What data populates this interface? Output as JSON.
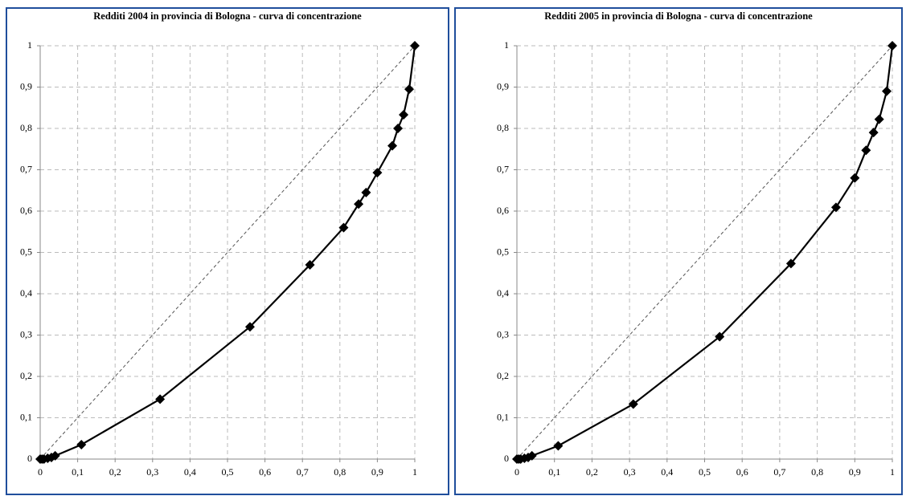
{
  "chart_data": [
    {
      "type": "line",
      "title": "Redditi 2004 in provincia di Bologna - curva di concentrazione",
      "xlim": [
        0,
        1
      ],
      "ylim": [
        0,
        1
      ],
      "xticks": [
        0,
        {
          "value": 0.1,
          "label": "0,1"
        },
        {
          "value": 0.2,
          "label": "0,2"
        },
        {
          "value": 0.3,
          "label": "0,3"
        },
        {
          "value": 0.4,
          "label": "0,4"
        },
        {
          "value": 0.5,
          "label": "0,5"
        },
        {
          "value": 0.6,
          "label": "0,6"
        },
        {
          "value": 0.7,
          "label": "0,7"
        },
        {
          "value": 0.8,
          "label": "0,8"
        },
        {
          "value": 0.9,
          "label": "0,9"
        },
        1
      ],
      "yticks": [
        0,
        {
          "value": 0.1,
          "label": "0,1"
        },
        {
          "value": 0.2,
          "label": "0,2"
        },
        {
          "value": 0.3,
          "label": "0,3"
        },
        {
          "value": 0.4,
          "label": "0,4"
        },
        {
          "value": 0.5,
          "label": "0,5"
        },
        {
          "value": 0.6,
          "label": "0,6"
        },
        {
          "value": 0.7,
          "label": "0,7"
        },
        {
          "value": 0.8,
          "label": "0,8"
        },
        {
          "value": 0.9,
          "label": "0,9"
        },
        1
      ],
      "grid": true,
      "series": [
        {
          "color": "#555555",
          "dashed": true,
          "x": [
            0,
            1
          ],
          "values": [
            0,
            1
          ]
        },
        {
          "color": "#000000",
          "marker": "diamond",
          "x": [
            0,
            0.005,
            0.01,
            0.02,
            0.03,
            0.04,
            0.11,
            0.32,
            0.56,
            0.72,
            0.81,
            0.85,
            0.87,
            0.9,
            0.94,
            0.955,
            0.97,
            0.985,
            1
          ],
          "values": [
            0,
            0,
            0,
            0.002,
            0.004,
            0.008,
            0.035,
            0.145,
            0.32,
            0.47,
            0.56,
            0.617,
            0.645,
            0.693,
            0.758,
            0.8,
            0.833,
            0.895,
            1
          ]
        }
      ]
    },
    {
      "type": "line",
      "title": "Redditi 2005 in provincia di Bologna - curva di concentrazione",
      "xlim": [
        0,
        1
      ],
      "ylim": [
        0,
        1
      ],
      "xticks": [
        0,
        {
          "value": 0.1,
          "label": "0,1"
        },
        {
          "value": 0.2,
          "label": "0,2"
        },
        {
          "value": 0.3,
          "label": "0,3"
        },
        {
          "value": 0.4,
          "label": "0,4"
        },
        {
          "value": 0.5,
          "label": "0,5"
        },
        {
          "value": 0.6,
          "label": "0,6"
        },
        {
          "value": 0.7,
          "label": "0,7"
        },
        {
          "value": 0.8,
          "label": "0,8"
        },
        {
          "value": 0.9,
          "label": "0,9"
        },
        1
      ],
      "yticks": [
        0,
        {
          "value": 0.1,
          "label": "0,1"
        },
        {
          "value": 0.2,
          "label": "0,2"
        },
        {
          "value": 0.3,
          "label": "0,3"
        },
        {
          "value": 0.4,
          "label": "0,4"
        },
        {
          "value": 0.5,
          "label": "0,5"
        },
        {
          "value": 0.6,
          "label": "0,6"
        },
        {
          "value": 0.7,
          "label": "0,7"
        },
        {
          "value": 0.8,
          "label": "0,8"
        },
        {
          "value": 0.9,
          "label": "0,9"
        },
        1
      ],
      "grid": true,
      "series": [
        {
          "color": "#555555",
          "dashed": true,
          "x": [
            0,
            1
          ],
          "values": [
            0,
            1
          ]
        },
        {
          "color": "#000000",
          "marker": "diamond",
          "x": [
            0,
            0.005,
            0.01,
            0.02,
            0.03,
            0.04,
            0.11,
            0.31,
            0.54,
            0.73,
            0.85,
            0.9,
            0.93,
            0.95,
            0.965,
            0.985,
            1
          ],
          "values": [
            0,
            0,
            0,
            0.002,
            0.004,
            0.008,
            0.032,
            0.133,
            0.296,
            0.473,
            0.609,
            0.68,
            0.747,
            0.79,
            0.822,
            0.89,
            1
          ]
        }
      ]
    }
  ]
}
